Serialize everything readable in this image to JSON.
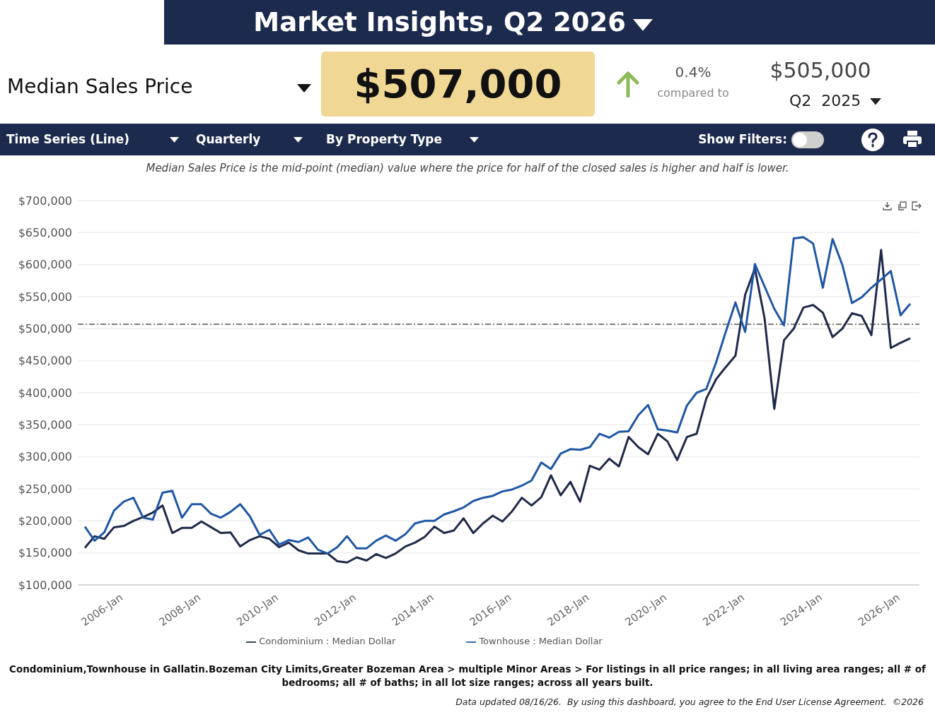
{
  "chart_data": {
    "type": "line",
    "title": "Market Insights, Q2 2026",
    "subtitle": "Median Sales Price is the mid-point (median) value where the price for half of the closed sales is higher and half is lower.",
    "categories": [
      null,
      null,
      null,
      null,
      "2006-Jan",
      null,
      null,
      null,
      null,
      null,
      null,
      null,
      "2008-Jan",
      null,
      null,
      null,
      null,
      null,
      null,
      null,
      "2010-Jan",
      null,
      null,
      null,
      null,
      null,
      null,
      null,
      "2012-Jan",
      null,
      null,
      null,
      null,
      null,
      null,
      null,
      "2014-Jan",
      null,
      null,
      null,
      null,
      null,
      null,
      null,
      "2016-Jan",
      null,
      null,
      null,
      null,
      null,
      null,
      null,
      "2018-Jan",
      null,
      null,
      null,
      null,
      null,
      null,
      null,
      "2020-Jan",
      null,
      null,
      null,
      null,
      null,
      null,
      null,
      "2022-Jan",
      null,
      null,
      null,
      null,
      null,
      null,
      null,
      "2024-Jan",
      null,
      null,
      null,
      null,
      null,
      null,
      null,
      "2026-Jan",
      null
    ],
    "series": [
      {
        "name": "Condominium : Median Dollar",
        "color": "#1f2a4a",
        "values": [
          158000,
          176000,
          172000,
          190000,
          192000,
          200000,
          206000,
          213000,
          224000,
          181000,
          189000,
          189000,
          199000,
          190000,
          181000,
          182000,
          160000,
          170000,
          176000,
          172000,
          159000,
          166000,
          154000,
          149000,
          149000,
          149000,
          137000,
          135000,
          143000,
          138000,
          148000,
          142000,
          149000,
          160000,
          166000,
          175000,
          191000,
          181000,
          185000,
          204000,
          181000,
          196000,
          208000,
          199000,
          215000,
          236000,
          224000,
          237000,
          271000,
          240000,
          261000,
          230000,
          286000,
          280000,
          297000,
          285000,
          331000,
          315000,
          304000,
          336000,
          324000,
          295000,
          331000,
          336000,
          391000,
          421000,
          440000,
          458000,
          553000,
          594000,
          516000,
          375000,
          482000,
          500000,
          533000,
          537000,
          525000,
          487000,
          500000,
          524000,
          520000,
          490000,
          623000,
          470000,
          478000,
          485000
        ]
      },
      {
        "name": "Townhouse : Median Dollar",
        "color": "#1f57a4",
        "values": [
          191000,
          169000,
          182000,
          216000,
          230000,
          236000,
          205000,
          202000,
          244000,
          247000,
          205000,
          226000,
          226000,
          211000,
          205000,
          214000,
          226000,
          207000,
          178000,
          186000,
          163000,
          170000,
          167000,
          174000,
          155000,
          149000,
          159000,
          176000,
          157000,
          157000,
          169000,
          177000,
          169000,
          179000,
          196000,
          200000,
          200000,
          210000,
          215000,
          221000,
          231000,
          236000,
          239000,
          246000,
          249000,
          255000,
          263000,
          291000,
          281000,
          305000,
          312000,
          311000,
          315000,
          336000,
          330000,
          339000,
          340000,
          365000,
          381000,
          343000,
          341000,
          338000,
          380000,
          400000,
          406000,
          447000,
          495000,
          541000,
          495000,
          601000,
          566000,
          531000,
          505000,
          641000,
          643000,
          633000,
          564000,
          640000,
          600000,
          540000,
          549000,
          564000,
          577000,
          590000,
          521000,
          539000
        ]
      }
    ],
    "ylim": [
      100000,
      700000
    ],
    "yticks": [
      {
        "value": 100000,
        "label": "$100,000"
      },
      {
        "value": 150000,
        "label": "$150,000"
      },
      {
        "value": 200000,
        "label": "$200,000"
      },
      {
        "value": 250000,
        "label": "$250,000"
      },
      {
        "value": 300000,
        "label": "$300,000"
      },
      {
        "value": 350000,
        "label": "$350,000"
      },
      {
        "value": 400000,
        "label": "$400,000"
      },
      {
        "value": 450000,
        "label": "$450,000"
      },
      {
        "value": 500000,
        "label": "$500,000"
      },
      {
        "value": 550000,
        "label": "$550,000"
      },
      {
        "value": 600000,
        "label": "$600,000"
      },
      {
        "value": 650000,
        "label": "$650,000"
      },
      {
        "value": 700000,
        "label": "$700,000"
      }
    ],
    "ref_lines": [
      {
        "axis": "y",
        "value": 507000,
        "color": "#555555",
        "line_style": "dashed"
      }
    ],
    "grid": "y",
    "legend": "bottom",
    "marker": "none",
    "line_style": "solid",
    "annotations": [
      "Median Sales Price",
      "$507,000",
      "0.4%",
      "compared to",
      "$505,000",
      "Q2  2025",
      "Time Series (Line)",
      "Quarterly",
      "By Property Type",
      "Show Filters:",
      "Condominium,Townhouse in Gallatin.Bozeman City Limits,Greater Bozeman Area > multiple Minor Areas > For listings in all price ranges; in all living area ranges; all # of bedrooms; all # of baths; in all lot size ranges; across all years built.",
      "Data updated 08/16/26.  By using this dashboard, you agree to the End User License Agreement.  ©2026"
    ]
  }
}
